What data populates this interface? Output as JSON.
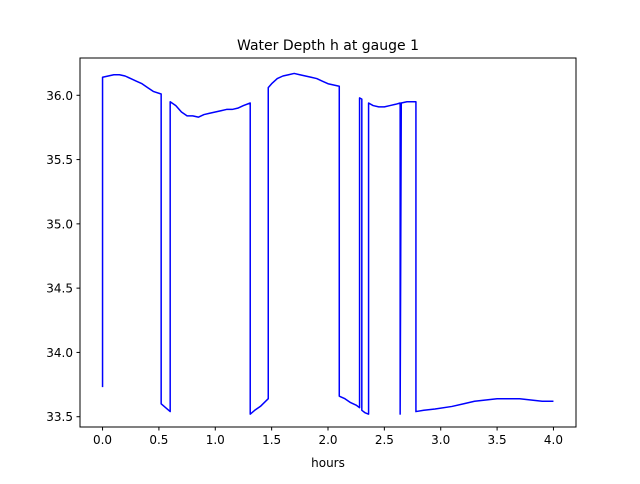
{
  "chart_data": {
    "type": "line",
    "title": "Water Depth h at gauge 1",
    "xlabel": "hours",
    "ylabel": "",
    "xlim": [
      -0.2,
      4.2
    ],
    "ylim": [
      33.42,
      36.29
    ],
    "xticks": [
      0.0,
      0.5,
      1.0,
      1.5,
      2.0,
      2.5,
      3.0,
      3.5,
      4.0
    ],
    "xtick_labels": [
      "0.0",
      "0.5",
      "1.0",
      "1.5",
      "2.0",
      "2.5",
      "3.0",
      "3.5",
      "4.0"
    ],
    "yticks": [
      33.5,
      34.0,
      34.5,
      35.0,
      35.5,
      36.0
    ],
    "ytick_labels": [
      "33.5",
      "34.0",
      "34.5",
      "35.0",
      "35.5",
      "36.0"
    ],
    "grid": false,
    "series": [
      {
        "color": "#0000ff",
        "x": [
          0.0,
          0.0,
          0.05,
          0.1,
          0.15,
          0.2,
          0.25,
          0.3,
          0.35,
          0.4,
          0.45,
          0.52,
          0.52,
          0.6,
          0.6,
          0.65,
          0.7,
          0.75,
          0.8,
          0.85,
          0.9,
          0.95,
          1.0,
          1.05,
          1.1,
          1.15,
          1.2,
          1.25,
          1.31,
          1.31,
          1.35,
          1.4,
          1.47,
          1.47,
          1.5,
          1.55,
          1.6,
          1.65,
          1.7,
          1.75,
          1.8,
          1.85,
          1.9,
          1.95,
          2.0,
          2.05,
          2.1,
          2.1,
          2.15,
          2.2,
          2.25,
          2.28,
          2.28,
          2.3,
          2.3,
          2.33,
          2.36,
          2.36,
          2.4,
          2.45,
          2.5,
          2.55,
          2.6,
          2.64,
          2.64,
          2.65,
          2.65,
          2.7,
          2.78,
          2.78,
          2.85,
          2.95,
          3.1,
          3.2,
          3.3,
          3.4,
          3.5,
          3.6,
          3.7,
          3.8,
          3.9,
          4.0
        ],
        "y": [
          33.73,
          36.14,
          36.15,
          36.16,
          36.16,
          36.15,
          36.13,
          36.11,
          36.09,
          36.06,
          36.03,
          36.01,
          33.6,
          33.54,
          35.95,
          35.92,
          35.87,
          35.84,
          35.84,
          35.83,
          35.85,
          35.86,
          35.87,
          35.88,
          35.89,
          35.89,
          35.9,
          35.92,
          35.94,
          33.52,
          33.55,
          33.58,
          33.64,
          36.06,
          36.09,
          36.13,
          36.15,
          36.16,
          36.17,
          36.16,
          36.15,
          36.14,
          36.13,
          36.11,
          36.09,
          36.08,
          36.07,
          33.66,
          33.64,
          33.61,
          33.59,
          33.57,
          35.98,
          35.97,
          33.55,
          33.53,
          33.52,
          35.94,
          35.92,
          35.91,
          35.91,
          35.92,
          35.93,
          35.94,
          33.52,
          35.93,
          35.94,
          35.95,
          35.95,
          33.54,
          33.55,
          33.56,
          33.58,
          33.6,
          33.62,
          33.63,
          33.64,
          33.64,
          33.64,
          33.63,
          33.62,
          33.62
        ]
      }
    ]
  }
}
